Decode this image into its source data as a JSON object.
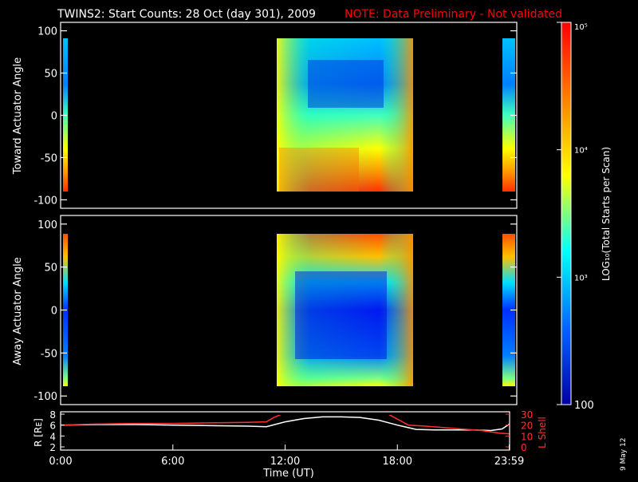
{
  "header": {
    "title": "TWINS2: Start Counts: 28 Oct (day 301), 2009",
    "note": "NOTE: Data Preliminary - Not validated"
  },
  "colorbar": {
    "label": "LOG₁₀(Total Starts per Scan)",
    "ticks": [
      "10⁵",
      "10⁴",
      "10³",
      "100"
    ],
    "tick_values": [
      100000,
      10000,
      1000,
      100
    ],
    "colors": [
      "#ff0000",
      "#ff8000",
      "#ffff00",
      "#00ffff",
      "#0064ff",
      "#0000a0"
    ]
  },
  "side_note": "9 May 12",
  "chart_data": [
    {
      "type": "heatmap",
      "title": "",
      "xlabel": "",
      "ylabel": "Toward Actuator Angle",
      "xlim": [
        0,
        24
      ],
      "ylim": [
        -110,
        110
      ],
      "yticks": [
        "100",
        "50",
        "0",
        "-50",
        "-100"
      ],
      "ytick_values": [
        100,
        50,
        0,
        -50,
        -100
      ],
      "segments": [
        {
          "x_start": 0.15,
          "x_end": 0.35,
          "y_min": -90,
          "y_max": 90
        },
        {
          "x_start": 10.8,
          "x_end": 18.7,
          "y_min": -90,
          "y_max": 90
        },
        {
          "x_start": 23.6,
          "x_end": 24.0,
          "y_min": -90,
          "y_max": 90
        }
      ]
    },
    {
      "type": "heatmap",
      "title": "",
      "xlabel": "",
      "ylabel": "Away Actuator Angle",
      "xlim": [
        0,
        24
      ],
      "ylim": [
        -110,
        110
      ],
      "yticks": [
        "100",
        "50",
        "0",
        "-50",
        "-100"
      ],
      "ytick_values": [
        100,
        50,
        0,
        -50,
        -100
      ],
      "segments": [
        {
          "x_start": 0.15,
          "x_end": 0.35,
          "y_min": -90,
          "y_max": 90
        },
        {
          "x_start": 10.8,
          "x_end": 18.7,
          "y_min": -90,
          "y_max": 90
        },
        {
          "x_start": 23.6,
          "x_end": 24.0,
          "y_min": -90,
          "y_max": 90
        }
      ]
    },
    {
      "type": "line",
      "title": "",
      "xlabel": "Time (UT)",
      "ylabel": "R [Rᴇ]",
      "y2label": "L Shell",
      "xlim": [
        0,
        24
      ],
      "ylim": [
        2,
        8
      ],
      "y2lim": [
        0,
        30
      ],
      "xticks": [
        "0:00",
        "6:00",
        "12:00",
        "18:00",
        "23:59"
      ],
      "xtick_values": [
        0,
        6,
        12,
        18,
        23.98
      ],
      "yticks": [
        "8",
        "6",
        "4",
        "2"
      ],
      "ytick_values": [
        8,
        6,
        4,
        2
      ],
      "y2ticks": [
        "30",
        "20",
        "10",
        "0"
      ],
      "y2tick_values": [
        30,
        20,
        10,
        0
      ],
      "series": [
        {
          "name": "R",
          "axis": "left",
          "color": "#ffffff",
          "x": [
            0,
            2,
            4,
            6,
            8,
            10,
            11,
            12,
            13,
            14,
            15,
            16,
            17,
            18,
            19,
            20,
            22,
            23,
            23.6,
            24
          ],
          "y": [
            6.0,
            6.1,
            6.1,
            6.0,
            5.9,
            5.8,
            5.7,
            6.6,
            7.2,
            7.5,
            7.5,
            7.4,
            6.9,
            6.0,
            5.2,
            5.1,
            5.1,
            5.0,
            5.3,
            6.2
          ]
        },
        {
          "name": "L Shell",
          "axis": "right",
          "color": "#ff3030",
          "x": [
            0,
            2,
            4,
            6,
            8,
            10,
            11,
            11.4,
            12.1
          ],
          "y": [
            20,
            21,
            21.5,
            21.5,
            22,
            22.5,
            23,
            27,
            32
          ]
        },
        {
          "name": "L Shell",
          "axis": "right",
          "color": "#ff3030",
          "x": [
            17.3,
            18.6,
            19.5,
            21,
            22.5,
            23.5,
            24
          ],
          "y": [
            32,
            20,
            19,
            17,
            15,
            12.5,
            12
          ]
        }
      ]
    }
  ]
}
